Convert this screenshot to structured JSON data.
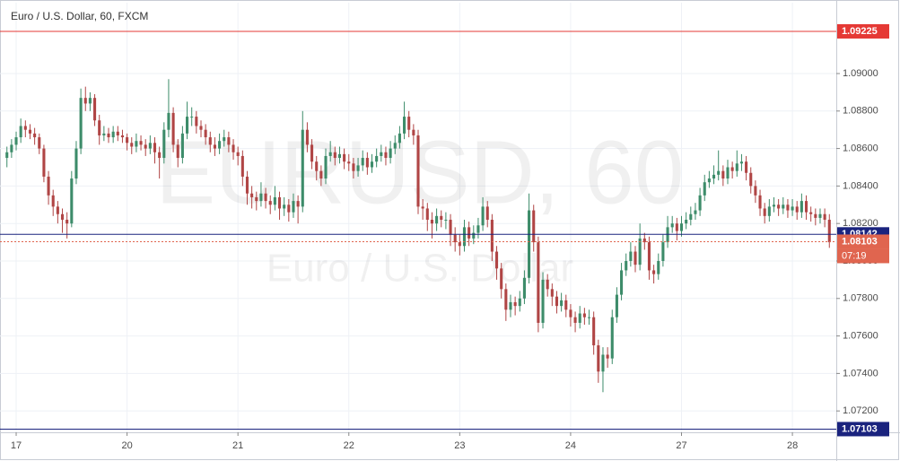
{
  "chart_data": {
    "type": "candlestick",
    "title": "Euro / U.S. Dollar, 60, FXCM",
    "watermark": [
      "EURUSD, 60",
      "Euro / U.S. Dollar"
    ],
    "up_color": "#3d8c6a",
    "down_color": "#b04545",
    "xlim": [
      -1.5,
      179.5
    ],
    "xticks": [
      {
        "value": 2,
        "label": "17"
      },
      {
        "value": 26,
        "label": "20"
      },
      {
        "value": 50,
        "label": "21"
      },
      {
        "value": 74,
        "label": "22"
      },
      {
        "value": 98,
        "label": "23"
      },
      {
        "value": 122,
        "label": "24"
      },
      {
        "value": 146,
        "label": "27"
      },
      {
        "value": 170,
        "label": "28"
      }
    ],
    "ylim": [
      1.07086,
      1.09378
    ],
    "yticks": [
      {
        "value": 1.072,
        "label": "1.07200"
      },
      {
        "value": 1.074,
        "label": "1.07400"
      },
      {
        "value": 1.076,
        "label": "1.07600"
      },
      {
        "value": 1.078,
        "label": "1.07800"
      },
      {
        "value": 1.08,
        "label": "1.08000"
      },
      {
        "value": 1.082,
        "label": "1.08200"
      },
      {
        "value": 1.084,
        "label": "1.08400"
      },
      {
        "value": 1.086,
        "label": "1.08600"
      },
      {
        "value": 1.088,
        "label": "1.08800"
      },
      {
        "value": 1.09,
        "label": "1.09000"
      }
    ],
    "grid": true,
    "price_lines": [
      {
        "value": 1.09225,
        "color": "#e53935",
        "style": "solid"
      },
      {
        "value": 1.08142,
        "color": "#1a237e",
        "style": "solid"
      },
      {
        "value": 1.08103,
        "color": "#e0654f",
        "style": "dotted",
        "countdown": "07:19"
      },
      {
        "value": 1.07103,
        "color": "#1a237e",
        "style": "solid"
      }
    ],
    "candles": [
      [
        1.0855,
        1.0861,
        1.085,
        1.0858
      ],
      [
        1.0858,
        1.0865,
        1.0855,
        1.0862
      ],
      [
        1.0862,
        1.0869,
        1.0859,
        1.0866
      ],
      [
        1.0866,
        1.0876,
        1.0863,
        1.0872
      ],
      [
        1.0872,
        1.0875,
        1.0866,
        1.087
      ],
      [
        1.087,
        1.0873,
        1.0865,
        1.0868
      ],
      [
        1.0868,
        1.0871,
        1.0862,
        1.0866
      ],
      [
        1.0866,
        1.0868,
        1.0857,
        1.086
      ],
      [
        1.086,
        1.0862,
        1.0842,
        1.0845
      ],
      [
        1.0845,
        1.0848,
        1.083,
        1.0835
      ],
      [
        1.0835,
        1.0838,
        1.0824,
        1.0829
      ],
      [
        1.0829,
        1.0832,
        1.082,
        1.0825
      ],
      [
        1.0825,
        1.0828,
        1.0815,
        1.0822
      ],
      [
        1.0822,
        1.0826,
        1.0812,
        1.082
      ],
      [
        1.082,
        1.0848,
        1.0818,
        1.0844
      ],
      [
        1.0844,
        1.0864,
        1.0841,
        1.086
      ],
      [
        1.086,
        1.0892,
        1.0857,
        1.0887
      ],
      [
        1.0887,
        1.0893,
        1.088,
        1.0884
      ],
      [
        1.0884,
        1.089,
        1.088,
        1.0887
      ],
      [
        1.0887,
        1.0889,
        1.0872,
        1.0875
      ],
      [
        1.0875,
        1.0878,
        1.0862,
        1.0867
      ],
      [
        1.0867,
        1.0872,
        1.0864,
        1.0868
      ],
      [
        1.0868,
        1.0871,
        1.0863,
        1.0866
      ],
      [
        1.0866,
        1.0872,
        1.0863,
        1.0869
      ],
      [
        1.0869,
        1.0872,
        1.0864,
        1.0867
      ],
      [
        1.0867,
        1.087,
        1.0863,
        1.0866
      ],
      [
        1.0866,
        1.0868,
        1.0859,
        1.0863
      ],
      [
        1.0863,
        1.0866,
        1.0857,
        1.0861
      ],
      [
        1.0861,
        1.0868,
        1.0858,
        1.0864
      ],
      [
        1.0864,
        1.0867,
        1.0859,
        1.0862
      ],
      [
        1.0862,
        1.0865,
        1.0856,
        1.086
      ],
      [
        1.086,
        1.0867,
        1.0857,
        1.0863
      ],
      [
        1.0863,
        1.0866,
        1.0852,
        1.0858
      ],
      [
        1.0858,
        1.0861,
        1.0844,
        1.0855
      ],
      [
        1.0855,
        1.0874,
        1.0852,
        1.087
      ],
      [
        1.087,
        1.0897,
        1.0866,
        1.0879
      ],
      [
        1.0879,
        1.0882,
        1.0858,
        1.0862
      ],
      [
        1.0862,
        1.0865,
        1.085,
        1.0855
      ],
      [
        1.0855,
        1.0872,
        1.0852,
        1.0868
      ],
      [
        1.0868,
        1.0885,
        1.0865,
        1.0877
      ],
      [
        1.0877,
        1.0882,
        1.0872,
        1.0877
      ],
      [
        1.0877,
        1.088,
        1.0868,
        1.0872
      ],
      [
        1.0872,
        1.0875,
        1.0866,
        1.087
      ],
      [
        1.087,
        1.0873,
        1.0862,
        1.0866
      ],
      [
        1.0866,
        1.0869,
        1.0858,
        1.0862
      ],
      [
        1.0862,
        1.0866,
        1.0856,
        1.086
      ],
      [
        1.086,
        1.0868,
        1.0857,
        1.0864
      ],
      [
        1.0864,
        1.087,
        1.0861,
        1.0866
      ],
      [
        1.0866,
        1.0869,
        1.0858,
        1.0862
      ],
      [
        1.0862,
        1.0865,
        1.0854,
        1.0858
      ],
      [
        1.0858,
        1.0861,
        1.0851,
        1.0856
      ],
      [
        1.0856,
        1.0859,
        1.084,
        1.0845
      ],
      [
        1.0845,
        1.0848,
        1.083,
        1.0836
      ],
      [
        1.0836,
        1.084,
        1.0828,
        1.0834
      ],
      [
        1.0834,
        1.0837,
        1.0827,
        1.0832
      ],
      [
        1.0832,
        1.0842,
        1.0829,
        1.0836
      ],
      [
        1.0836,
        1.0839,
        1.0828,
        1.0832
      ],
      [
        1.0832,
        1.0835,
        1.0825,
        1.083
      ],
      [
        1.083,
        1.084,
        1.0827,
        1.0834
      ],
      [
        1.0834,
        1.0837,
        1.0822,
        1.0828
      ],
      [
        1.0828,
        1.0834,
        1.0824,
        1.083
      ],
      [
        1.083,
        1.0833,
        1.0821,
        1.0826
      ],
      [
        1.0826,
        1.0836,
        1.0823,
        1.0832
      ],
      [
        1.0832,
        1.0835,
        1.082,
        1.0829
      ],
      [
        1.0829,
        1.088,
        1.0826,
        1.087
      ],
      [
        1.087,
        1.0874,
        1.0858,
        1.0862
      ],
      [
        1.0862,
        1.0865,
        1.0849,
        1.0853
      ],
      [
        1.0853,
        1.0856,
        1.0843,
        1.0848
      ],
      [
        1.0848,
        1.0851,
        1.084,
        1.0844
      ],
      [
        1.0844,
        1.086,
        1.0841,
        1.0856
      ],
      [
        1.0856,
        1.0864,
        1.0853,
        1.0858
      ],
      [
        1.0858,
        1.0861,
        1.0851,
        1.0855
      ],
      [
        1.0855,
        1.0861,
        1.0852,
        1.0857
      ],
      [
        1.0857,
        1.086,
        1.0849,
        1.0853
      ],
      [
        1.0853,
        1.0857,
        1.0848,
        1.0852
      ],
      [
        1.0852,
        1.0855,
        1.0844,
        1.0848
      ],
      [
        1.0848,
        1.0855,
        1.0845,
        1.0851
      ],
      [
        1.0851,
        1.0859,
        1.0848,
        1.0855
      ],
      [
        1.0855,
        1.0858,
        1.0846,
        1.085
      ],
      [
        1.085,
        1.0857,
        1.0847,
        1.0853
      ],
      [
        1.0853,
        1.086,
        1.085,
        1.0856
      ],
      [
        1.0856,
        1.0862,
        1.0853,
        1.0858
      ],
      [
        1.0858,
        1.0861,
        1.0851,
        1.0855
      ],
      [
        1.0855,
        1.0864,
        1.0852,
        1.086
      ],
      [
        1.086,
        1.0867,
        1.0857,
        1.0863
      ],
      [
        1.0863,
        1.0872,
        1.086,
        1.0868
      ],
      [
        1.0868,
        1.0885,
        1.0865,
        1.0877
      ],
      [
        1.0877,
        1.088,
        1.0866,
        1.087
      ],
      [
        1.087,
        1.0873,
        1.0862,
        1.0867
      ],
      [
        1.0867,
        1.087,
        1.0825,
        1.0829
      ],
      [
        1.0829,
        1.0833,
        1.0822,
        1.0828
      ],
      [
        1.0828,
        1.0831,
        1.0816,
        1.0822
      ],
      [
        1.0822,
        1.0826,
        1.0812,
        1.082
      ],
      [
        1.082,
        1.0828,
        1.0816,
        1.0824
      ],
      [
        1.0824,
        1.0827,
        1.0818,
        1.0822
      ],
      [
        1.0822,
        1.0826,
        1.0817,
        1.0822
      ],
      [
        1.0822,
        1.0825,
        1.0808,
        1.0814
      ],
      [
        1.0814,
        1.0818,
        1.0805,
        1.081
      ],
      [
        1.081,
        1.0814,
        1.0803,
        1.0808
      ],
      [
        1.0808,
        1.0822,
        1.0805,
        1.0818
      ],
      [
        1.0818,
        1.0821,
        1.0808,
        1.0812
      ],
      [
        1.0812,
        1.0819,
        1.0809,
        1.0815
      ],
      [
        1.0815,
        1.0823,
        1.0812,
        1.0819
      ],
      [
        1.0819,
        1.0834,
        1.0816,
        1.0829
      ],
      [
        1.0829,
        1.0832,
        1.0818,
        1.0822
      ],
      [
        1.0822,
        1.0825,
        1.08,
        1.0805
      ],
      [
        1.0805,
        1.0808,
        1.079,
        1.0796
      ],
      [
        1.0796,
        1.0799,
        1.078,
        1.0785
      ],
      [
        1.0785,
        1.0788,
        1.0768,
        1.0774
      ],
      [
        1.0774,
        1.0782,
        1.077,
        1.0778
      ],
      [
        1.0778,
        1.0781,
        1.0771,
        1.0776
      ],
      [
        1.0776,
        1.0784,
        1.0773,
        1.078
      ],
      [
        1.078,
        1.0795,
        1.0777,
        1.0791
      ],
      [
        1.0791,
        1.0836,
        1.0788,
        1.0827
      ],
      [
        1.0827,
        1.083,
        1.0805,
        1.081
      ],
      [
        1.081,
        1.0813,
        1.0762,
        1.0767
      ],
      [
        1.0767,
        1.0794,
        1.0764,
        1.079
      ],
      [
        1.079,
        1.0793,
        1.0781,
        1.0785
      ],
      [
        1.0785,
        1.0788,
        1.0776,
        1.0781
      ],
      [
        1.0781,
        1.0784,
        1.0772,
        1.0776
      ],
      [
        1.0776,
        1.0783,
        1.0773,
        1.0779
      ],
      [
        1.0779,
        1.0782,
        1.077,
        1.0774
      ],
      [
        1.0774,
        1.0777,
        1.0765,
        1.077
      ],
      [
        1.077,
        1.0773,
        1.0762,
        1.0767
      ],
      [
        1.0767,
        1.0776,
        1.0764,
        1.0772
      ],
      [
        1.0772,
        1.0775,
        1.0766,
        1.077
      ],
      [
        1.077,
        1.0774,
        1.0766,
        1.077
      ],
      [
        1.077,
        1.0773,
        1.075,
        1.0755
      ],
      [
        1.0755,
        1.0758,
        1.0735,
        1.0741
      ],
      [
        1.0741,
        1.0754,
        1.073,
        1.075
      ],
      [
        1.075,
        1.0754,
        1.0743,
        1.0748
      ],
      [
        1.0748,
        1.0774,
        1.0745,
        1.077
      ],
      [
        1.077,
        1.0786,
        1.0767,
        1.0782
      ],
      [
        1.0782,
        1.0799,
        1.0779,
        1.0795
      ],
      [
        1.0795,
        1.0804,
        1.0792,
        1.08
      ],
      [
        1.08,
        1.081,
        1.0797,
        1.0805
      ],
      [
        1.0805,
        1.0808,
        1.0794,
        1.0798
      ],
      [
        1.0798,
        1.082,
        1.0795,
        1.0812
      ],
      [
        1.0812,
        1.0815,
        1.0806,
        1.081
      ],
      [
        1.081,
        1.0813,
        1.079,
        1.0795
      ],
      [
        1.0795,
        1.0798,
        1.0788,
        1.0793
      ],
      [
        1.0793,
        1.0804,
        1.079,
        1.08
      ],
      [
        1.08,
        1.0814,
        1.0797,
        1.081
      ],
      [
        1.081,
        1.0824,
        1.0807,
        1.0818
      ],
      [
        1.0818,
        1.0824,
        1.0815,
        1.082
      ],
      [
        1.082,
        1.0823,
        1.0811,
        1.0816
      ],
      [
        1.0816,
        1.0824,
        1.0813,
        1.082
      ],
      [
        1.082,
        1.0826,
        1.0817,
        1.0822
      ],
      [
        1.0822,
        1.0829,
        1.0819,
        1.0825
      ],
      [
        1.0825,
        1.0831,
        1.0822,
        1.0827
      ],
      [
        1.0827,
        1.0839,
        1.0824,
        1.0835
      ],
      [
        1.0835,
        1.0846,
        1.0832,
        1.0842
      ],
      [
        1.0842,
        1.0848,
        1.0839,
        1.0844
      ],
      [
        1.0844,
        1.0851,
        1.0841,
        1.0846
      ],
      [
        1.0846,
        1.0859,
        1.0843,
        1.0848
      ],
      [
        1.0848,
        1.0851,
        1.084,
        1.0844
      ],
      [
        1.0844,
        1.0854,
        1.0841,
        1.085
      ],
      [
        1.085,
        1.0853,
        1.0844,
        1.0848
      ],
      [
        1.0848,
        1.0859,
        1.0845,
        1.0852
      ],
      [
        1.0852,
        1.0857,
        1.0848,
        1.0853
      ],
      [
        1.0853,
        1.0856,
        1.0843,
        1.0847
      ],
      [
        1.0847,
        1.085,
        1.0836,
        1.084
      ],
      [
        1.084,
        1.0843,
        1.0831,
        1.0835
      ],
      [
        1.0835,
        1.0838,
        1.0824,
        1.0828
      ],
      [
        1.0828,
        1.0831,
        1.082,
        1.0824
      ],
      [
        1.0824,
        1.0833,
        1.0821,
        1.0829
      ],
      [
        1.0829,
        1.0834,
        1.0826,
        1.083
      ],
      [
        1.083,
        1.0833,
        1.0824,
        1.0828
      ],
      [
        1.0828,
        1.0834,
        1.0825,
        1.083
      ],
      [
        1.083,
        1.0833,
        1.0823,
        1.0827
      ],
      [
        1.0827,
        1.0833,
        1.0824,
        1.0829
      ],
      [
        1.0829,
        1.0832,
        1.0822,
        1.0826
      ],
      [
        1.0826,
        1.0836,
        1.0823,
        1.0832
      ],
      [
        1.0832,
        1.0835,
        1.0822,
        1.0826
      ],
      [
        1.0826,
        1.0829,
        1.0821,
        1.0825
      ],
      [
        1.0825,
        1.0828,
        1.0819,
        1.0823
      ],
      [
        1.0823,
        1.0828,
        1.082,
        1.0825
      ],
      [
        1.0825,
        1.0828,
        1.0818,
        1.0822
      ],
      [
        1.0822,
        1.0825,
        1.0807,
        1.081
      ]
    ]
  }
}
